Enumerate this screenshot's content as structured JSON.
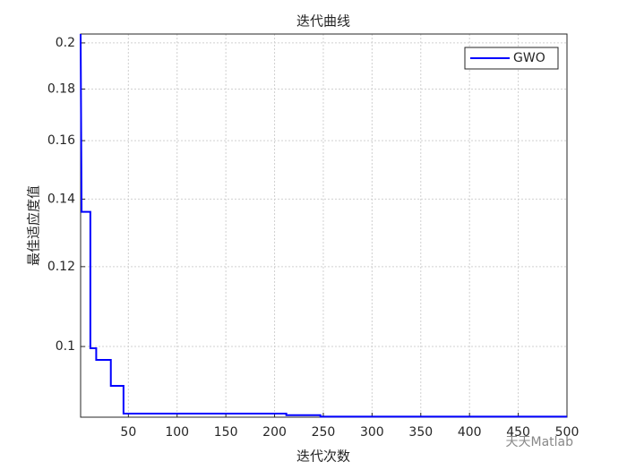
{
  "chart_data": {
    "type": "line",
    "title": "迭代曲线",
    "x_label": "迭代次数",
    "y_label": "最佳适应度值",
    "x": [
      1,
      2,
      11,
      11,
      17,
      17,
      32,
      32,
      45,
      45,
      212,
      212,
      247,
      247,
      500
    ],
    "series": [
      {
        "name": "GWO",
        "color": "#0000ff",
        "values": [
          0.2041,
          0.136,
          0.136,
          0.0996,
          0.0996,
          0.097,
          0.097,
          0.0914,
          0.0914,
          0.0858,
          0.0858,
          0.0855,
          0.0855,
          0.0852,
          0.0852
        ]
      }
    ],
    "xlim": [
      1,
      500
    ],
    "xticks": [
      50,
      100,
      150,
      200,
      250,
      300,
      350,
      400,
      450,
      500
    ],
    "ylim": [
      0.0851,
      0.2041
    ],
    "yticks": [
      0.1,
      0.12,
      0.14,
      0.16,
      0.18,
      0.2
    ],
    "y_scale": "log",
    "grid": true,
    "legend": "upper right",
    "watermark": "天天Matlab"
  }
}
